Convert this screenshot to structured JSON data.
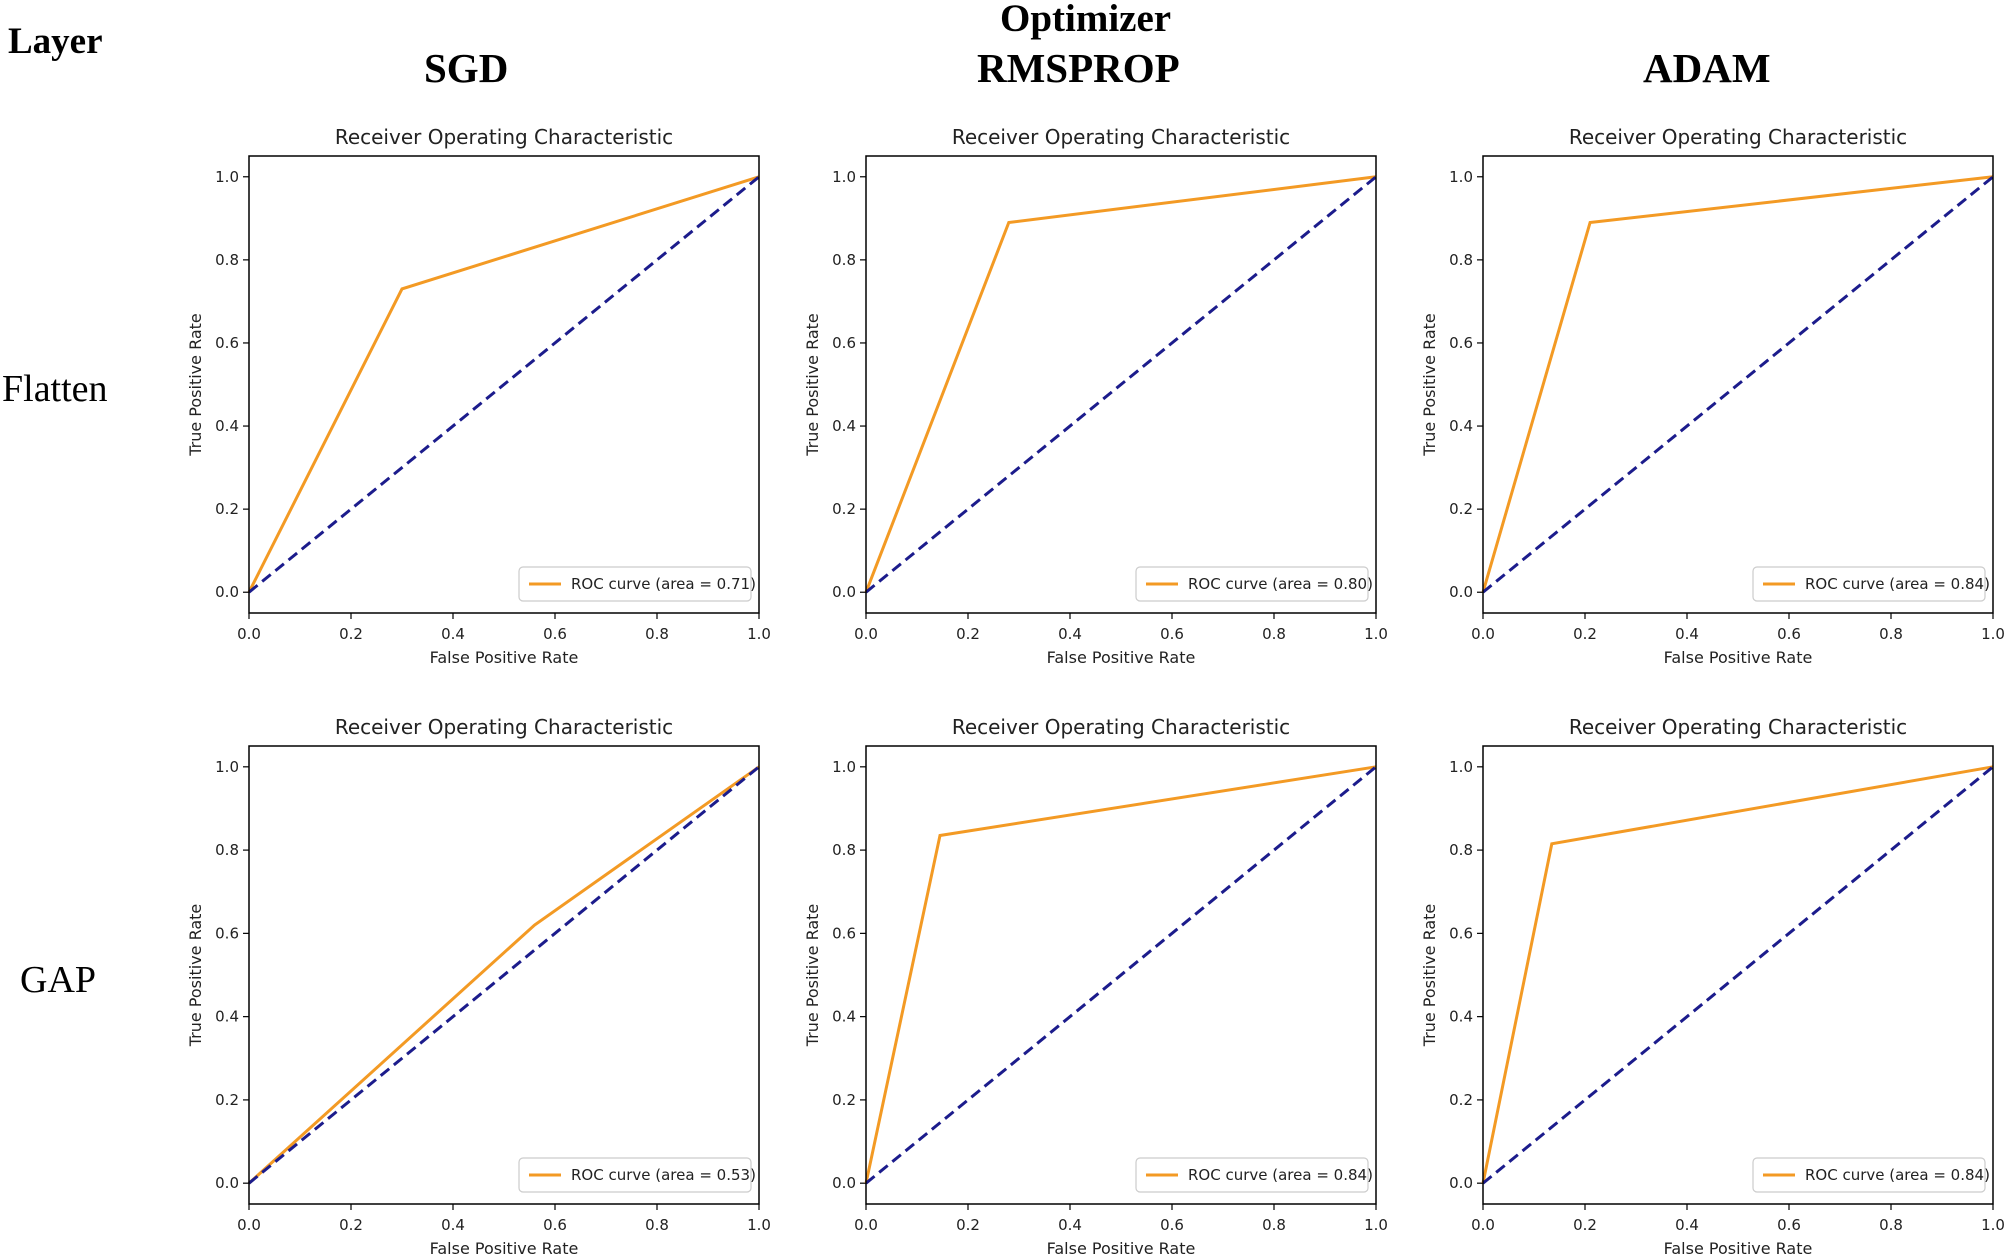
{
  "figure": {
    "corner_label": "Layer",
    "group_label": "Optimizer",
    "column_labels": [
      "SGD",
      "RMSPROP",
      "ADAM"
    ],
    "row_labels": [
      "Flatten",
      "GAP"
    ]
  },
  "colors": {
    "roc": "#f39a24",
    "diagonal": "#1c1c8c",
    "axes": "#000000"
  },
  "chart_data": [
    {
      "type": "line",
      "row": "Flatten",
      "optimizer": "SGD",
      "title": "Receiver Operating Characteristic",
      "xlabel": "False Positive Rate",
      "ylabel": "True Positive Rate",
      "xlim": [
        0,
        1
      ],
      "ylim": [
        0,
        1
      ],
      "xticks": [
        "0.0",
        "0.2",
        "0.4",
        "0.6",
        "0.8",
        "1.0"
      ],
      "yticks": [
        "0.0",
        "0.2",
        "0.4",
        "0.6",
        "0.8",
        "1.0"
      ],
      "legend": "ROC curve (area = 0.71)",
      "legend_loc": "lower right",
      "series": [
        {
          "name": "ROC curve",
          "x": [
            0,
            0.3,
            1
          ],
          "y": [
            0,
            0.73,
            1
          ]
        },
        {
          "name": "chance",
          "style": "dashed",
          "x": [
            0,
            1
          ],
          "y": [
            0,
            1
          ]
        }
      ]
    },
    {
      "type": "line",
      "row": "Flatten",
      "optimizer": "RMSPROP",
      "title": "Receiver Operating Characteristic",
      "xlabel": "False Positive Rate",
      "ylabel": "True Positive Rate",
      "xlim": [
        0,
        1
      ],
      "ylim": [
        0,
        1
      ],
      "xticks": [
        "0.0",
        "0.2",
        "0.4",
        "0.6",
        "0.8",
        "1.0"
      ],
      "yticks": [
        "0.0",
        "0.2",
        "0.4",
        "0.6",
        "0.8",
        "1.0"
      ],
      "legend": "ROC curve (area = 0.80)",
      "legend_loc": "lower right",
      "series": [
        {
          "name": "ROC curve",
          "x": [
            0,
            0.28,
            1
          ],
          "y": [
            0,
            0.89,
            1
          ]
        },
        {
          "name": "chance",
          "style": "dashed",
          "x": [
            0,
            1
          ],
          "y": [
            0,
            1
          ]
        }
      ]
    },
    {
      "type": "line",
      "row": "Flatten",
      "optimizer": "ADAM",
      "title": "Receiver Operating Characteristic",
      "xlabel": "False Positive Rate",
      "ylabel": "True Positive Rate",
      "xlim": [
        0,
        1
      ],
      "ylim": [
        0,
        1
      ],
      "xticks": [
        "0.0",
        "0.2",
        "0.4",
        "0.6",
        "0.8",
        "1.0"
      ],
      "yticks": [
        "0.0",
        "0.2",
        "0.4",
        "0.6",
        "0.8",
        "1.0"
      ],
      "legend": "ROC curve (area = 0.84)",
      "legend_loc": "lower right",
      "series": [
        {
          "name": "ROC curve",
          "x": [
            0,
            0.21,
            1
          ],
          "y": [
            0,
            0.89,
            1
          ]
        },
        {
          "name": "chance",
          "style": "dashed",
          "x": [
            0,
            1
          ],
          "y": [
            0,
            1
          ]
        }
      ]
    },
    {
      "type": "line",
      "row": "GAP",
      "optimizer": "SGD",
      "title": "Receiver Operating Characteristic",
      "xlabel": "False Positive Rate",
      "ylabel": "True Positive Rate",
      "xlim": [
        0,
        1
      ],
      "ylim": [
        0,
        1
      ],
      "xticks": [
        "0.0",
        "0.2",
        "0.4",
        "0.6",
        "0.8",
        "1.0"
      ],
      "yticks": [
        "0.0",
        "0.2",
        "0.4",
        "0.6",
        "0.8",
        "1.0"
      ],
      "legend": "ROC curve (area = 0.53)",
      "legend_loc": "lower right",
      "series": [
        {
          "name": "ROC curve",
          "x": [
            0,
            0.56,
            1
          ],
          "y": [
            0,
            0.62,
            1
          ]
        },
        {
          "name": "chance",
          "style": "dashed",
          "x": [
            0,
            1
          ],
          "y": [
            0,
            1
          ]
        }
      ]
    },
    {
      "type": "line",
      "row": "GAP",
      "optimizer": "RMSPROP",
      "title": "Receiver Operating Characteristic",
      "xlabel": "False Positive Rate",
      "ylabel": "True Positive Rate",
      "xlim": [
        0,
        1
      ],
      "ylim": [
        0,
        1
      ],
      "xticks": [
        "0.0",
        "0.2",
        "0.4",
        "0.6",
        "0.8",
        "1.0"
      ],
      "yticks": [
        "0.0",
        "0.2",
        "0.4",
        "0.6",
        "0.8",
        "1.0"
      ],
      "legend": "ROC curve (area = 0.84)",
      "legend_loc": "lower right",
      "series": [
        {
          "name": "ROC curve",
          "x": [
            0,
            0.145,
            1
          ],
          "y": [
            0,
            0.835,
            1
          ]
        },
        {
          "name": "chance",
          "style": "dashed",
          "x": [
            0,
            1
          ],
          "y": [
            0,
            1
          ]
        }
      ]
    },
    {
      "type": "line",
      "row": "GAP",
      "optimizer": "ADAM",
      "title": "Receiver Operating Characteristic",
      "xlabel": "False Positive Rate",
      "ylabel": "True Positive Rate",
      "xlim": [
        0,
        1
      ],
      "ylim": [
        0,
        1
      ],
      "xticks": [
        "0.0",
        "0.2",
        "0.4",
        "0.6",
        "0.8",
        "1.0"
      ],
      "yticks": [
        "0.0",
        "0.2",
        "0.4",
        "0.6",
        "0.8",
        "1.0"
      ],
      "legend": "ROC curve (area = 0.84)",
      "legend_loc": "lower right",
      "series": [
        {
          "name": "ROC curve",
          "x": [
            0,
            0.135,
            1
          ],
          "y": [
            0,
            0.815,
            1
          ]
        },
        {
          "name": "chance",
          "style": "dashed",
          "x": [
            0,
            1
          ],
          "y": [
            0,
            1
          ]
        }
      ]
    }
  ]
}
